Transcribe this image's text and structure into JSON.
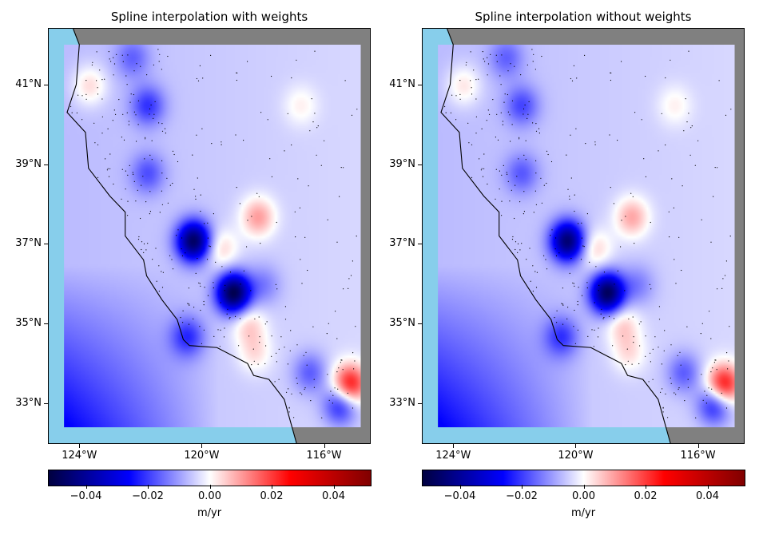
{
  "panels": [
    {
      "title": "Spline interpolation with weights",
      "blobs": [
        {
          "lon": -120.3,
          "lat": 37.1,
          "v": -0.042
        },
        {
          "lon": -119.0,
          "lat": 35.8,
          "v": -0.045
        },
        {
          "lon": -121.8,
          "lat": 40.5,
          "v": -0.015
        },
        {
          "lon": -121.8,
          "lat": 38.8,
          "v": -0.012
        },
        {
          "lon": -122.3,
          "lat": 41.7,
          "v": -0.01
        },
        {
          "lon": -120.5,
          "lat": 34.7,
          "v": -0.015
        },
        {
          "lon": -118.0,
          "lat": 36.0,
          "v": -0.008
        },
        {
          "lon": -115.5,
          "lat": 33.0,
          "v": -0.02
        },
        {
          "lon": -116.5,
          "lat": 33.8,
          "v": -0.012
        },
        {
          "lon": -118.2,
          "lat": 37.7,
          "v": 0.015
        },
        {
          "lon": -119.4,
          "lat": 36.9,
          "v": 0.01
        },
        {
          "lon": -118.5,
          "lat": 35.0,
          "v": 0.01
        },
        {
          "lon": -115.2,
          "lat": 33.5,
          "v": 0.03
        },
        {
          "lon": -123.7,
          "lat": 41.0,
          "v": 0.01
        },
        {
          "lon": -116.8,
          "lat": 40.5,
          "v": 0.006
        },
        {
          "lon": -118.3,
          "lat": 34.3,
          "v": 0.008
        }
      ]
    },
    {
      "title": "Spline interpolation without weights",
      "blobs": [
        {
          "lon": -120.3,
          "lat": 37.1,
          "v": -0.04
        },
        {
          "lon": -119.0,
          "lat": 35.8,
          "v": -0.043
        },
        {
          "lon": -121.8,
          "lat": 40.5,
          "v": -0.013
        },
        {
          "lon": -121.8,
          "lat": 38.8,
          "v": -0.011
        },
        {
          "lon": -122.3,
          "lat": 41.7,
          "v": -0.01
        },
        {
          "lon": -120.5,
          "lat": 34.7,
          "v": -0.014
        },
        {
          "lon": -118.0,
          "lat": 36.0,
          "v": -0.008
        },
        {
          "lon": -115.5,
          "lat": 33.0,
          "v": -0.02
        },
        {
          "lon": -116.5,
          "lat": 33.8,
          "v": -0.012
        },
        {
          "lon": -118.2,
          "lat": 37.7,
          "v": 0.014
        },
        {
          "lon": -119.4,
          "lat": 36.9,
          "v": 0.01
        },
        {
          "lon": -118.5,
          "lat": 35.0,
          "v": 0.01
        },
        {
          "lon": -115.2,
          "lat": 33.5,
          "v": 0.03
        },
        {
          "lon": -123.7,
          "lat": 41.0,
          "v": 0.009
        },
        {
          "lon": -116.8,
          "lat": 40.5,
          "v": 0.006
        },
        {
          "lon": -118.3,
          "lat": 34.3,
          "v": 0.008
        }
      ]
    }
  ],
  "map": {
    "lon_range": [
      -125.0,
      -114.5
    ],
    "lat_range": [
      32.0,
      42.4
    ],
    "grid_lon_range": [
      -124.5,
      -114.8
    ],
    "grid_lat_range": [
      32.4,
      42.0
    ],
    "ocean_color": "#87ceeb",
    "land_outside_color": "#808080",
    "coastline": [
      [
        -124.2,
        42.4
      ],
      [
        -124.0,
        42.0
      ],
      [
        -124.1,
        41.0
      ],
      [
        -124.4,
        40.3
      ],
      [
        -123.8,
        39.8
      ],
      [
        -123.7,
        38.9
      ],
      [
        -123.0,
        38.2
      ],
      [
        -122.5,
        37.8
      ],
      [
        -122.5,
        37.2
      ],
      [
        -121.9,
        36.6
      ],
      [
        -121.8,
        36.2
      ],
      [
        -121.3,
        35.6
      ],
      [
        -120.8,
        35.1
      ],
      [
        -120.6,
        34.6
      ],
      [
        -120.4,
        34.45
      ],
      [
        -119.5,
        34.4
      ],
      [
        -118.5,
        34.0
      ],
      [
        -118.3,
        33.7
      ],
      [
        -117.8,
        33.6
      ],
      [
        -117.3,
        33.1
      ],
      [
        -117.1,
        32.55
      ],
      [
        -116.9,
        32.0
      ]
    ],
    "stations": {
      "density": 900,
      "color": "#000000"
    }
  },
  "axes": {
    "x_ticks": [
      {
        "lon": -124,
        "label": "124°W"
      },
      {
        "lon": -120,
        "label": "120°W"
      },
      {
        "lon": -116,
        "label": "116°W"
      }
    ],
    "y_ticks": [
      {
        "lat": 41,
        "label": "41°N"
      },
      {
        "lat": 39,
        "label": "39°N"
      },
      {
        "lat": 37,
        "label": "37°N"
      },
      {
        "lat": 35,
        "label": "35°N"
      },
      {
        "lat": 33,
        "label": "33°N"
      }
    ]
  },
  "colorbar": {
    "cmap": "seismic",
    "vmin": -0.052,
    "vmax": 0.052,
    "ticks": [
      {
        "v": -0.04,
        "label": "−0.04"
      },
      {
        "v": -0.02,
        "label": "−0.02"
      },
      {
        "v": 0.0,
        "label": "0.00"
      },
      {
        "v": 0.02,
        "label": "0.02"
      },
      {
        "v": 0.04,
        "label": "0.04"
      }
    ],
    "unit": "m/yr"
  }
}
